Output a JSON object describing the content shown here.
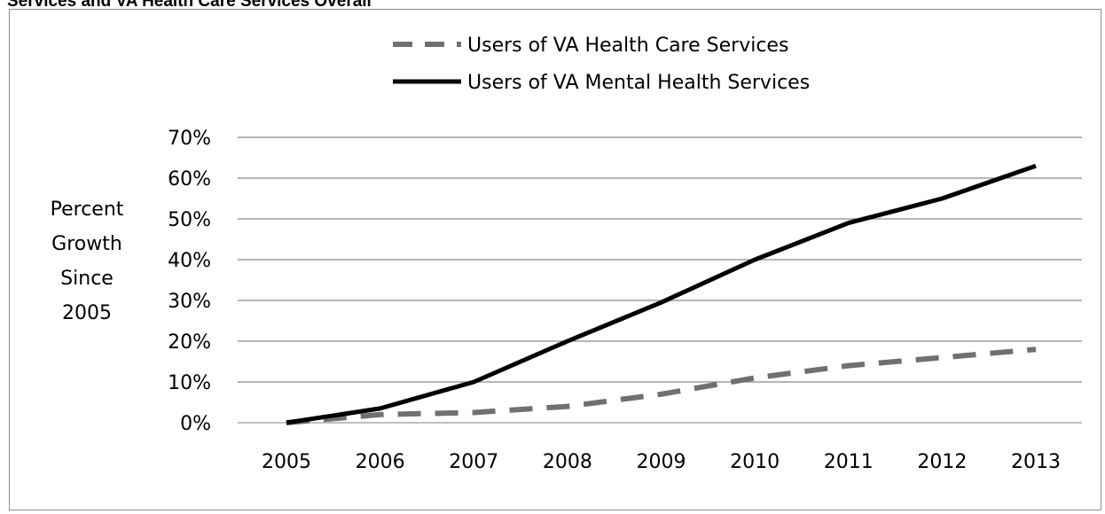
{
  "header": {
    "title_fragment": "Services and VA Health Care Services Overall"
  },
  "chart_data": {
    "type": "line",
    "categories": [
      "2005",
      "2006",
      "2007",
      "2008",
      "2009",
      "2010",
      "2011",
      "2012",
      "2013"
    ],
    "series": [
      {
        "name": "Users of VA Health Care Services",
        "values": [
          0,
          2,
          2.5,
          4,
          7,
          11,
          14,
          16,
          18
        ],
        "style": "dashed",
        "color": "#707070"
      },
      {
        "name": "Users of VA Mental Health Services",
        "values": [
          0,
          3.5,
          10,
          20,
          29.5,
          40,
          49,
          55,
          63
        ],
        "style": "solid",
        "color": "#000000"
      }
    ],
    "ylabel_lines": [
      "Percent",
      "Growth",
      "Since",
      "2005"
    ],
    "yticks": [
      "0%",
      "10%",
      "20%",
      "30%",
      "40%",
      "50%",
      "60%",
      "70%"
    ],
    "ylim": [
      0,
      70
    ],
    "grid": true,
    "legend_placement": "top-center"
  }
}
